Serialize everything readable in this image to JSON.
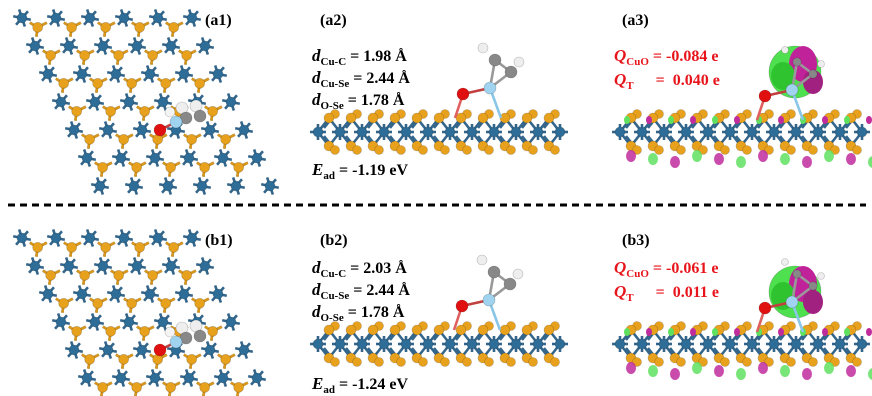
{
  "panels": [
    {
      "label": "(a1)"
    },
    {
      "label": "(a2)",
      "distances": [
        {
          "symbol": "d",
          "sub": "Cu-C",
          "value": "= 1.98 Å"
        },
        {
          "symbol": "d",
          "sub": "Cu-Se",
          "value": "= 2.44 Å"
        },
        {
          "symbol": "d",
          "sub": "O-Se",
          "value": "= 1.78 Å"
        }
      ],
      "energy": {
        "symbol": "E",
        "sub": "ad",
        "value": "= -1.19 eV"
      }
    },
    {
      "label": "(a3)",
      "charges": [
        {
          "symbol": "Q",
          "sub": "CuO",
          "value": "= -0.084 e"
        },
        {
          "symbol": "Q",
          "sub": "T",
          "value": "=  0.040 e"
        }
      ]
    },
    {
      "label": "(b1)"
    },
    {
      "label": "(b2)",
      "distances": [
        {
          "symbol": "d",
          "sub": "Cu-C",
          "value": "= 2.03 Å"
        },
        {
          "symbol": "d",
          "sub": "Cu-Se",
          "value": "= 2.44 Å"
        },
        {
          "symbol": "d",
          "sub": "O-Se",
          "value": "= 1.78 Å"
        }
      ],
      "energy": {
        "symbol": "E",
        "sub": "ad",
        "value": "= -1.24 eV"
      }
    },
    {
      "label": "(b3)",
      "charges": [
        {
          "symbol": "Q",
          "sub": "CuO",
          "value": "= -0.061 e"
        },
        {
          "symbol": "Q",
          "sub": "T",
          "value": "=  0.011 e"
        }
      ]
    }
  ]
}
